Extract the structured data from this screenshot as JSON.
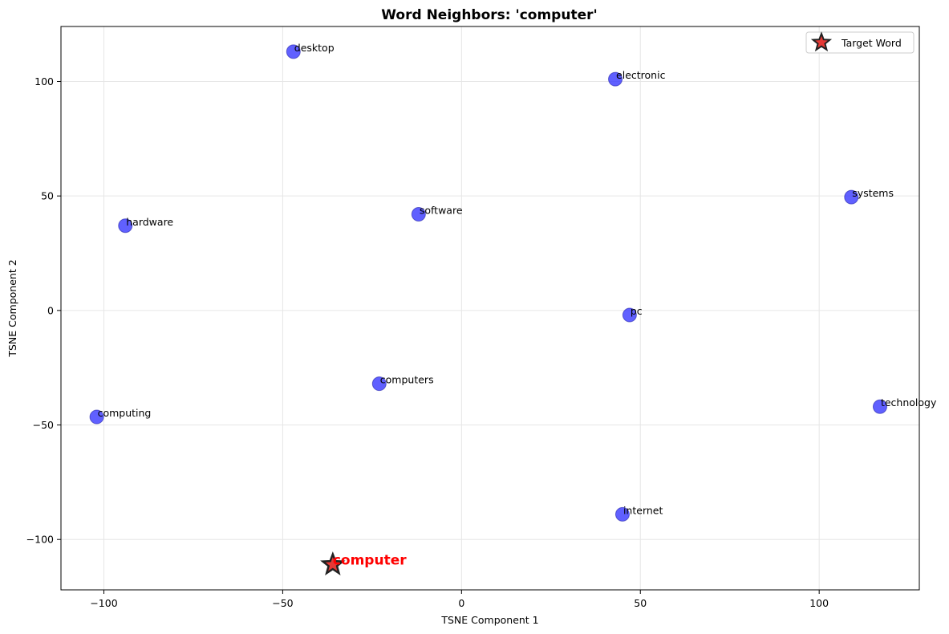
{
  "chart_data": {
    "type": "scatter",
    "title": "Word Neighbors: 'computer'",
    "xlabel": "TSNE Component 1",
    "ylabel": "TSNE Component 2",
    "xlim": [
      -112,
      128
    ],
    "ylim": [
      -122,
      124
    ],
    "xticks": [
      -100,
      -50,
      0,
      50,
      100
    ],
    "yticks": [
      -100,
      -50,
      0,
      50,
      100
    ],
    "xtick_labels": [
      "−100",
      "−50",
      "0",
      "50",
      "100"
    ],
    "ytick_labels": [
      "−100",
      "−50",
      "0",
      "50",
      "100"
    ],
    "grid": true,
    "legend": {
      "placement": "top-right",
      "entries": [
        "Target Word"
      ]
    },
    "colors": {
      "neighbor": "#3333ff",
      "target_fill": "#e53935",
      "target_label": "#ff0000",
      "target_edge": "#222222"
    },
    "neighbors": [
      {
        "word": "desktop",
        "x": -47,
        "y": 113
      },
      {
        "word": "electronic",
        "x": 43,
        "y": 101
      },
      {
        "word": "systems",
        "x": 109,
        "y": 49.5
      },
      {
        "word": "hardware",
        "x": -94,
        "y": 37
      },
      {
        "word": "software",
        "x": -12,
        "y": 42
      },
      {
        "word": "pc",
        "x": 47,
        "y": -2
      },
      {
        "word": "computers",
        "x": -23,
        "y": -32
      },
      {
        "word": "computing",
        "x": -102,
        "y": -46.5
      },
      {
        "word": "technology",
        "x": 117,
        "y": -42
      },
      {
        "word": "internet",
        "x": 45,
        "y": -89
      }
    ],
    "target": {
      "word": "computer",
      "x": -36,
      "y": -111
    }
  }
}
